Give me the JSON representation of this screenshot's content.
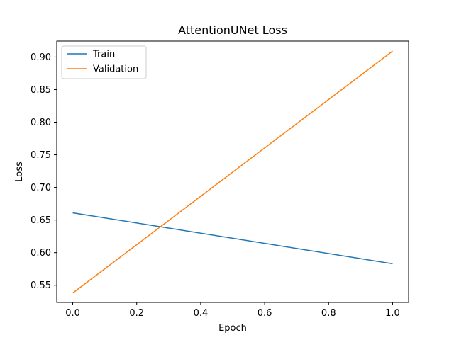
{
  "chart_data": {
    "type": "line",
    "title": "AttentionUNet Loss",
    "xlabel": "Epoch",
    "ylabel": "Loss",
    "xlim": [
      -0.05,
      1.05
    ],
    "ylim": [
      0.52365,
      0.92435
    ],
    "xticks": [
      0.0,
      0.2,
      0.4,
      0.6,
      0.8,
      1.0
    ],
    "xtick_labels": [
      "0.0",
      "0.2",
      "0.4",
      "0.6",
      "0.8",
      "1.0"
    ],
    "yticks": [
      0.55,
      0.6,
      0.65,
      0.7,
      0.75,
      0.8,
      0.85,
      0.9
    ],
    "ytick_labels": [
      "0.55",
      "0.60",
      "0.65",
      "0.70",
      "0.75",
      "0.80",
      "0.85",
      "0.90"
    ],
    "grid": false,
    "legend_position": "top-left",
    "series": [
      {
        "name": "Train",
        "color": "#1f77b4",
        "x": [
          0,
          1
        ],
        "y": [
          0.661,
          0.583
        ]
      },
      {
        "name": "Validation",
        "color": "#ff7f0e",
        "x": [
          0,
          1
        ],
        "y": [
          0.538,
          0.909
        ]
      }
    ]
  }
}
